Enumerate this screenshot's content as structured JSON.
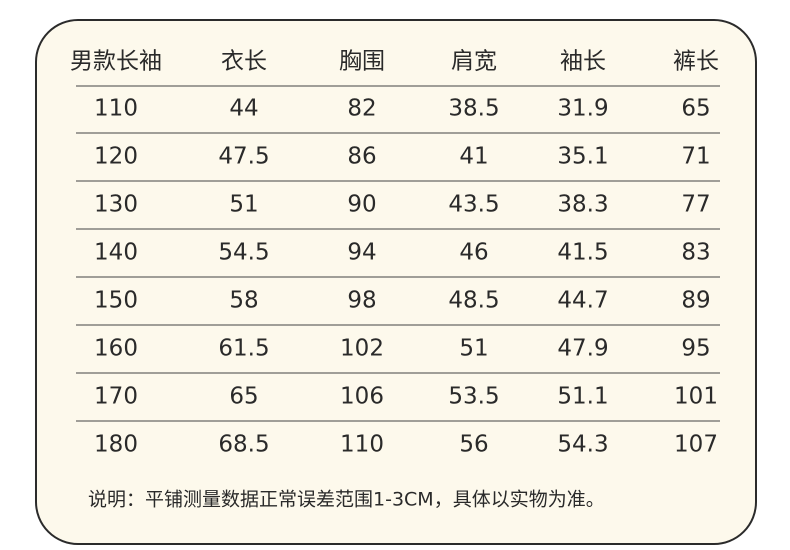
{
  "table": {
    "header": [
      "男款长袖",
      "衣长",
      "胸围",
      "肩宽",
      "袖长",
      "裤长"
    ],
    "rows": [
      [
        110,
        44,
        82,
        38.5,
        31.9,
        65
      ],
      [
        120,
        47.5,
        86,
        41,
        35.1,
        71
      ],
      [
        130,
        51,
        90,
        43.5,
        38.3,
        77
      ],
      [
        140,
        54.5,
        94,
        46,
        41.5,
        83
      ],
      [
        150,
        58,
        98,
        48.5,
        44.7,
        89
      ],
      [
        160,
        61.5,
        102,
        51,
        47.9,
        95
      ],
      [
        170,
        65,
        106,
        53.5,
        51.1,
        101
      ],
      [
        180,
        68.5,
        110,
        56,
        54.3,
        107
      ]
    ],
    "note": "说明：平铺测量数据正常误差范围1-3CM，具体以实物为准。"
  }
}
